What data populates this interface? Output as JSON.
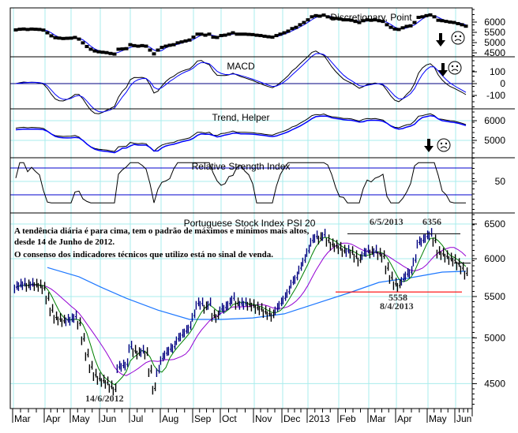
{
  "chart_data": {
    "type": "line",
    "title": "Portuguese Stock Index PSI 20",
    "x_ticks": [
      "Mar",
      "Apr",
      "May",
      "Jun",
      "Jul",
      "Aug",
      "Sep",
      "Oct",
      "Nov",
      "Dec",
      "2013",
      "Feb",
      "Mar",
      "Apr",
      "May",
      "Jun"
    ],
    "price": [
      5620,
      5650,
      5662,
      5640,
      5660,
      5650,
      5640,
      5609,
      5478,
      5330,
      5240,
      5220,
      5200,
      5210,
      5217,
      5250,
      5170,
      4987,
      4809,
      4676,
      4592,
      4552,
      4530,
      4511,
      4470,
      4440,
      4676,
      4690,
      4704,
      4898,
      4852,
      4826,
      4852,
      4826,
      4634,
      4450,
      4634,
      4765,
      4826,
      4870,
      4898,
      4987,
      5032,
      5078,
      5124,
      5264,
      5411,
      5411,
      5362,
      5411,
      5264,
      5250,
      5343,
      5362,
      5411,
      5478,
      5411,
      5411,
      5411,
      5400,
      5390,
      5360,
      5343,
      5310,
      5285,
      5264,
      5343,
      5411,
      5478,
      5560,
      5682,
      5744,
      5871,
      5979,
      6110,
      6257,
      6314,
      6290,
      6340,
      6257,
      6200,
      6180,
      6150,
      6110,
      6110,
      6090,
      6033,
      5979,
      6067,
      6110,
      6090,
      6110,
      6067,
      6033,
      5871,
      5744,
      5662,
      5640,
      5720,
      5790,
      5818,
      5979,
      6230,
      6257,
      6314,
      6350,
      6257,
      6090,
      6067,
      6033,
      6000,
      5979,
      5925,
      5871,
      5800
    ],
    "ma_long": [
      5880,
      5756,
      5609,
      5478,
      5330,
      5217,
      5217,
      5235,
      5285,
      5411,
      5540,
      5682,
      5744,
      5818,
      5830
    ],
    "colors": {
      "up": "#000080",
      "down": "#000000",
      "ma_short": "#008000",
      "ma_mid": "#9400d3",
      "ma_long": "#1e78ff",
      "support": "#ff0000",
      "grid": "#a8ecec"
    },
    "panels": {
      "discretionary": {
        "title": "Discretionary, Point",
        "ticks": [
          "6000",
          "5500",
          "5000",
          "4500"
        ]
      },
      "macd": {
        "title": "MACD",
        "ticks": [
          "100",
          "0",
          "-100"
        ]
      },
      "trend": {
        "title": "Trend, Helper",
        "ticks": [
          "6000",
          "5000"
        ]
      },
      "rsi": {
        "title": "Relative Strength Index",
        "ticks": [
          "50"
        ]
      },
      "main": {
        "title": "Portuguese Stock Index PSI 20",
        "ticks": [
          "6500",
          "6000",
          "5500",
          "5000",
          "4500"
        ]
      }
    },
    "annotations": {
      "comment_line1": "A tendência diária é para cima, tem o padrão de máximos e mínimos mais altos,",
      "comment_line2": "desde 14 de Junho de 2012.",
      "comment_line3": "O consenso dos indicadores técnicos que utilizo está no sinal de venda.",
      "high_date": "6/5/2013",
      "high_value": "6356",
      "low_value": "5558",
      "low_date": "8/4/2013",
      "low_2012_date": "14/6/2012"
    },
    "signals": {
      "discretionary": "sell",
      "macd": "sell",
      "trend": "sell"
    }
  }
}
